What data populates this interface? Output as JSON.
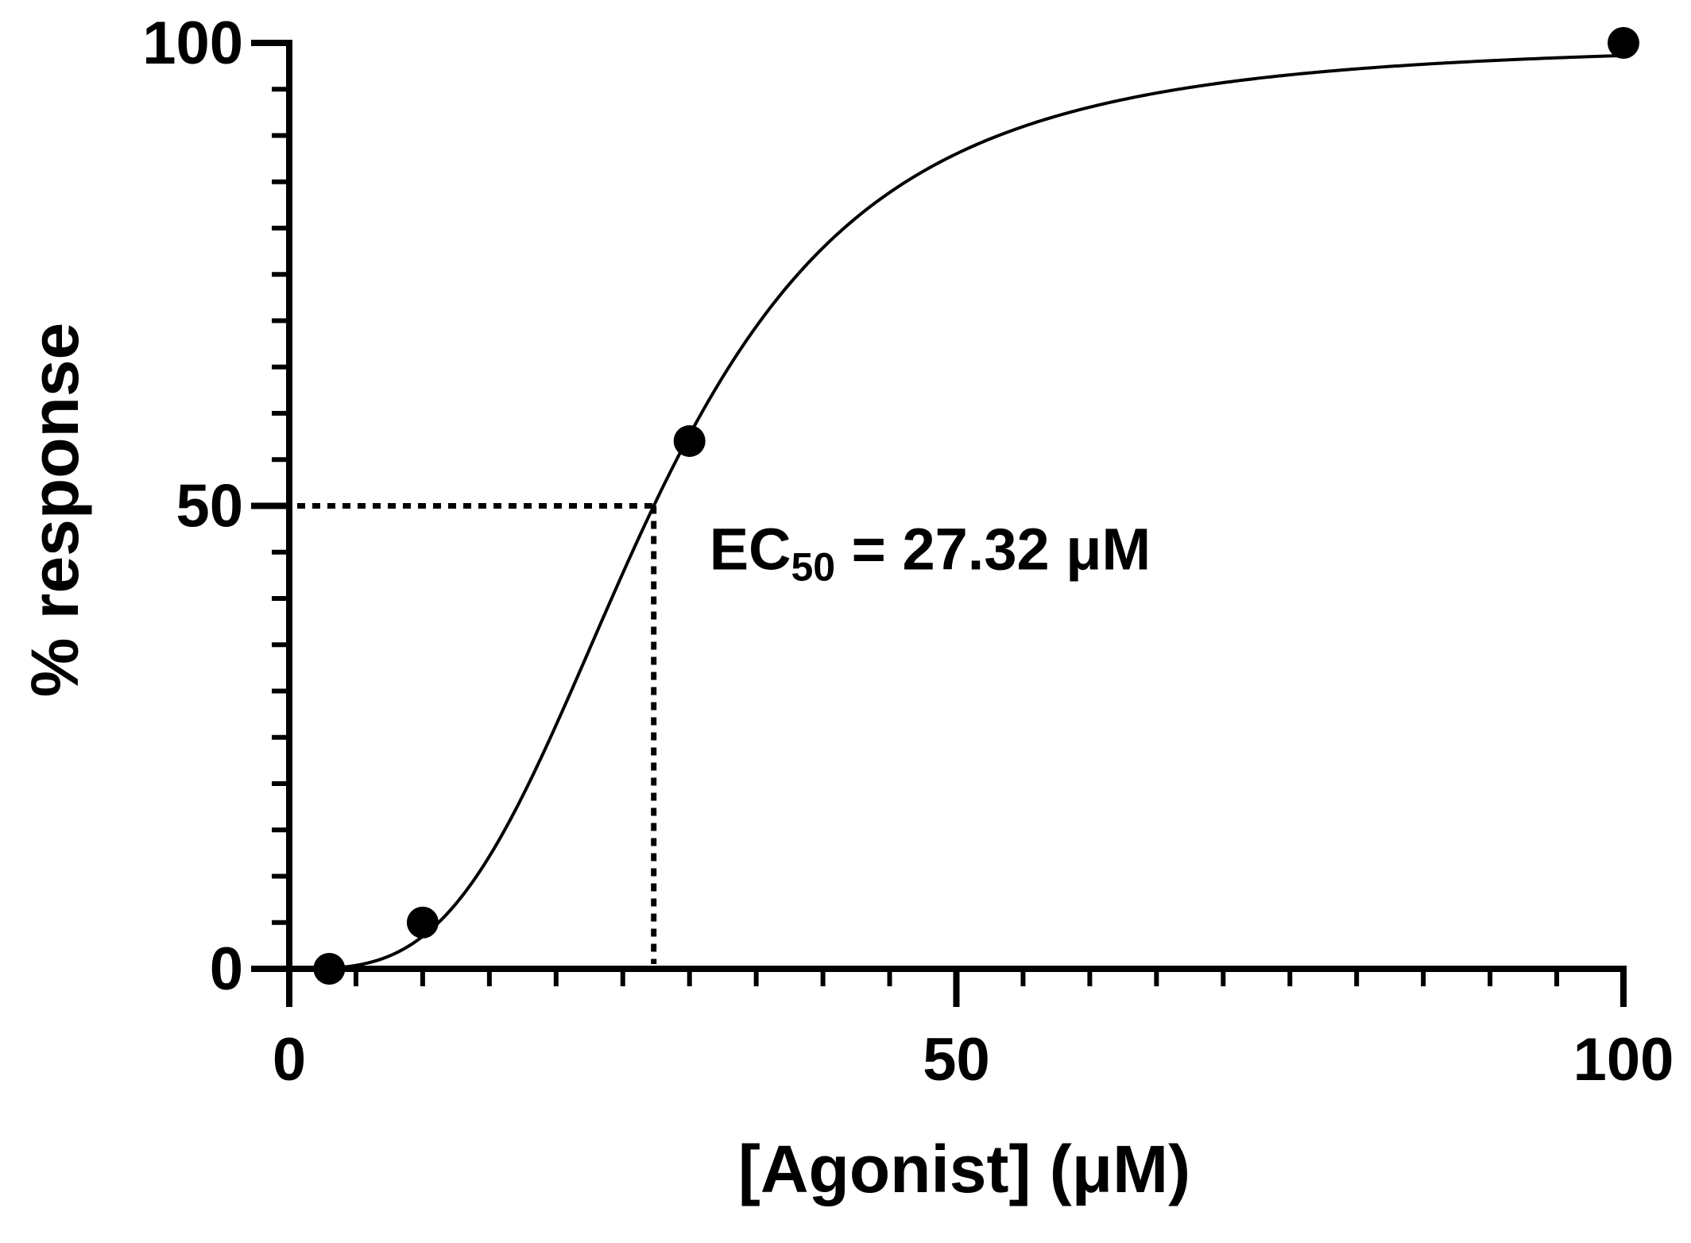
{
  "chart_data": {
    "type": "scatter",
    "xlabel": "[Agonist] (μM)",
    "ylabel": "% response",
    "xlim": [
      0,
      100
    ],
    "ylim": [
      0,
      100
    ],
    "x_ticks": [
      0,
      50,
      100
    ],
    "y_ticks": [
      0,
      50,
      100
    ],
    "x_tick_labels": [
      "0",
      "50",
      "100"
    ],
    "y_tick_labels": [
      "0",
      "50",
      "100"
    ],
    "x_minor_step": 5,
    "y_minor_step": 5,
    "grid": false,
    "series": [
      {
        "points": [
          {
            "x": 3,
            "y": 0
          },
          {
            "x": 10,
            "y": 5
          },
          {
            "x": 30,
            "y": 57
          },
          {
            "x": 100,
            "y": 100
          }
        ]
      }
    ],
    "fit": {
      "model": "hill",
      "ec50": 27.32,
      "hill_slope": 3.3,
      "bottom": 0,
      "top": 100
    },
    "annotation": {
      "ec50_label_main": "EC",
      "ec50_label_sub": "50",
      "ec50_label_rest": " = 27.32 μM",
      "ec50_x": 27.32,
      "ec50_y": 50
    }
  }
}
